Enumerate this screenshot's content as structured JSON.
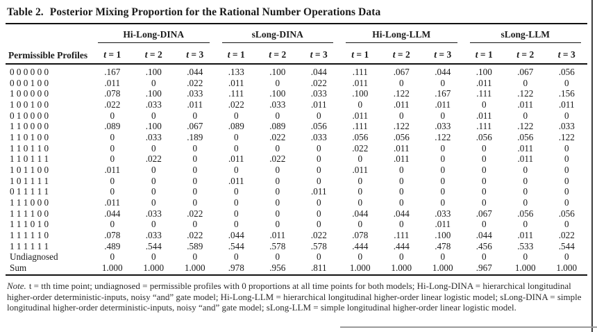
{
  "page": {
    "title_label": "Table 2.",
    "title_text": "Posterior Mixing Proportion for the Rational Number Operations Data"
  },
  "table": {
    "stub_header": "Permissible Profiles",
    "groups": [
      {
        "label": "Hi-Long-DINA"
      },
      {
        "label": "sLong-DINA"
      },
      {
        "label": "Hi-Long-LLM"
      },
      {
        "label": "sLong-LLM"
      }
    ],
    "time_headers": [
      "t = 1",
      "t = 2",
      "t = 3"
    ],
    "rows": [
      {
        "profile": "0 0 0 0 0 0",
        "values": [
          ".167",
          ".100",
          ".044",
          ".133",
          ".100",
          ".044",
          ".111",
          ".067",
          ".044",
          ".100",
          ".067",
          ".056"
        ]
      },
      {
        "profile": "0 0 0 1 0 0",
        "values": [
          ".011",
          "0",
          ".022",
          ".011",
          "0",
          ".022",
          ".011",
          "0",
          "0",
          ".011",
          "0",
          "0"
        ]
      },
      {
        "profile": "1 0 0 0 0 0",
        "values": [
          ".078",
          ".100",
          ".033",
          ".111",
          ".100",
          ".033",
          ".100",
          ".122",
          ".167",
          ".111",
          ".122",
          ".156"
        ]
      },
      {
        "profile": "1 0 0 1 0 0",
        "values": [
          ".022",
          ".033",
          ".011",
          ".022",
          ".033",
          ".011",
          "0",
          ".011",
          ".011",
          "0",
          ".011",
          ".011"
        ]
      },
      {
        "profile": "0 1 0 0 0 0",
        "values": [
          "0",
          "0",
          "0",
          "0",
          "0",
          "0",
          ".011",
          "0",
          "0",
          ".011",
          "0",
          "0"
        ]
      },
      {
        "profile": "1 1 0 0 0 0",
        "values": [
          ".089",
          ".100",
          ".067",
          ".089",
          ".089",
          ".056",
          ".111",
          ".122",
          ".033",
          ".111",
          ".122",
          ".033"
        ]
      },
      {
        "profile": "1 1 0 1 0 0",
        "values": [
          "0",
          ".033",
          ".189",
          "0",
          ".022",
          ".033",
          ".056",
          ".056",
          ".122",
          ".056",
          ".056",
          ".122"
        ]
      },
      {
        "profile": "1 1 0 1 1 0",
        "values": [
          "0",
          "0",
          "0",
          "0",
          "0",
          "0",
          ".022",
          ".011",
          "0",
          "0",
          ".011",
          "0"
        ]
      },
      {
        "profile": "1 1 0 1 1 1",
        "values": [
          "0",
          ".022",
          "0",
          ".011",
          ".022",
          "0",
          "0",
          ".011",
          "0",
          "0",
          ".011",
          "0"
        ]
      },
      {
        "profile": "1 0 1 1 0 0",
        "values": [
          ".011",
          "0",
          "0",
          "0",
          "0",
          "0",
          ".011",
          "0",
          "0",
          "0",
          "0",
          "0"
        ]
      },
      {
        "profile": "1 0 1 1 1 1",
        "values": [
          "0",
          "0",
          "0",
          ".011",
          "0",
          "0",
          "0",
          "0",
          "0",
          "0",
          "0",
          "0"
        ]
      },
      {
        "profile": "0 1 1 1 1 1",
        "values": [
          "0",
          "0",
          "0",
          "0",
          "0",
          ".011",
          "0",
          "0",
          "0",
          "0",
          "0",
          "0"
        ]
      },
      {
        "profile": "1 1 1 0 0 0",
        "values": [
          ".011",
          "0",
          "0",
          "0",
          "0",
          "0",
          "0",
          "0",
          "0",
          "0",
          "0",
          "0"
        ]
      },
      {
        "profile": "1 1 1 1 0 0",
        "values": [
          ".044",
          ".033",
          ".022",
          "0",
          "0",
          "0",
          ".044",
          ".044",
          ".033",
          ".067",
          ".056",
          ".056"
        ]
      },
      {
        "profile": "1 1 1 0 1 0",
        "values": [
          "0",
          "0",
          "0",
          "0",
          "0",
          "0",
          "0",
          "0",
          ".011",
          "0",
          "0",
          "0"
        ]
      },
      {
        "profile": "1 1 1 1 1 0",
        "values": [
          ".078",
          ".033",
          ".022",
          ".044",
          ".011",
          ".022",
          ".078",
          ".111",
          ".100",
          ".044",
          ".011",
          ".022"
        ]
      },
      {
        "profile": "1 1 1 1 1 1",
        "values": [
          ".489",
          ".544",
          ".589",
          ".544",
          ".578",
          ".578",
          ".444",
          ".444",
          ".478",
          ".456",
          ".533",
          ".544"
        ]
      },
      {
        "profile": "Undiagnosed",
        "values": [
          "0",
          "0",
          "0",
          "0",
          "0",
          "0",
          "0",
          "0",
          "0",
          "0",
          "0",
          "0"
        ]
      },
      {
        "profile": "Sum",
        "values": [
          "1.000",
          "1.000",
          "1.000",
          ".978",
          ".956",
          ".811",
          "1.000",
          "1.000",
          "1.000",
          ".967",
          "1.000",
          "1.000"
        ]
      }
    ]
  },
  "footnote": {
    "label": "Note.",
    "text": "t = tth time point; undiagnosed = permissible profiles with 0 proportions at all time points for both models; Hi-Long-DINA = hierarchical longitudinal higher-order deterministic-inputs, noisy “and” gate model; Hi-Long-LLM = hierarchical longitudinal higher-order linear logistic model; sLong-DINA = simple longitudinal higher-order deterministic-inputs, noisy “and” gate model; sLong-LLM = simple longitudinal higher-order linear logistic model."
  },
  "colors": {
    "text": "#1a1a1a",
    "rule": "#111111",
    "page_edge": "#3c3c3c"
  }
}
